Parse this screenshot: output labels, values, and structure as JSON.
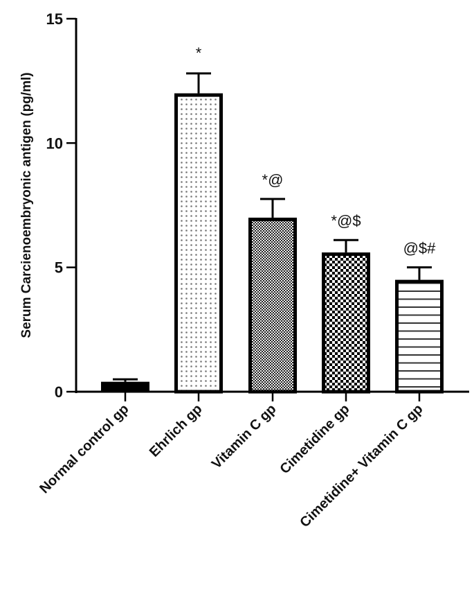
{
  "chart_data": {
    "type": "bar",
    "title": "",
    "xlabel": "",
    "ylabel": "Serum Carcienoembryonic antigen (pg/ml)",
    "ylim": [
      0,
      15
    ],
    "yticks": [
      0,
      5,
      10,
      15
    ],
    "grid": false,
    "legend": null,
    "categories": [
      "Normal control gp",
      "Ehrlich  gp",
      "Vitamin C gp",
      "Cimetidine gp",
      "Cimetidine+ Vitamin C gp"
    ],
    "values": [
      0.4,
      12.0,
      7.0,
      5.6,
      4.5
    ],
    "error": [
      0.1,
      0.8,
      0.75,
      0.5,
      0.5
    ],
    "annotations": [
      "",
      "*",
      "*@",
      "*@$",
      "@$#"
    ],
    "patterns": [
      "solid-black",
      "dots",
      "fine-checker",
      "checker",
      "horizontal-lines"
    ]
  },
  "axis": {
    "ytick_labels": [
      "0",
      "5",
      "10",
      "15"
    ]
  }
}
